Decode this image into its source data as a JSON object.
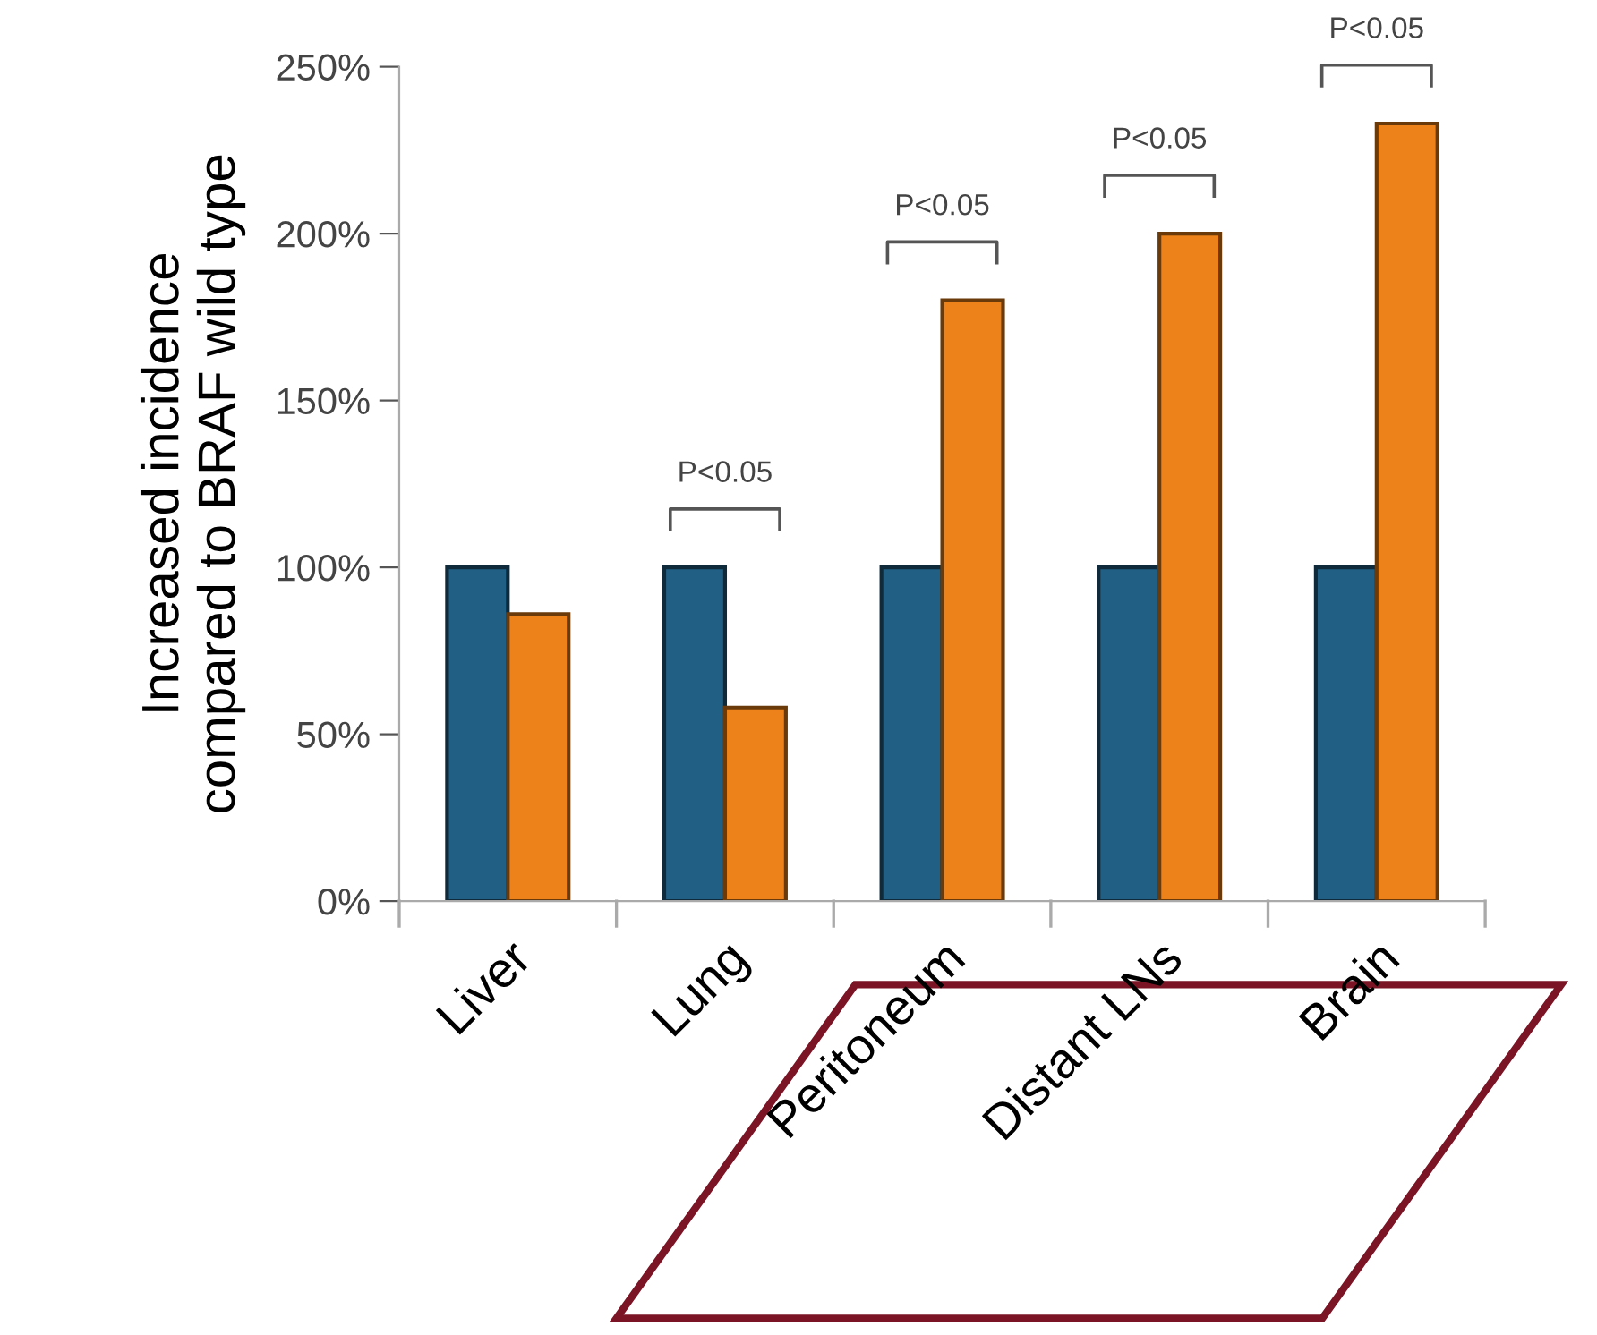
{
  "chart_data": {
    "type": "bar",
    "ylabel": "Increased incidence\ncompared to BRAF wild type",
    "categories": [
      "Liver",
      "Lung",
      "Peritoneum",
      "Distant LNs",
      "Brain"
    ],
    "series": [
      {
        "color": "#215f84",
        "values": [
          100,
          100,
          100,
          100,
          100
        ]
      },
      {
        "color": "#ec8219",
        "values": [
          86,
          58,
          180,
          200,
          233
        ]
      }
    ],
    "ylim": [
      0,
      250
    ],
    "yticks": [
      {
        "value": 0,
        "label": "0%"
      },
      {
        "value": 50,
        "label": "50%"
      },
      {
        "value": 100,
        "label": "100%"
      },
      {
        "value": 150,
        "label": "150%"
      },
      {
        "value": 200,
        "label": "200%"
      },
      {
        "value": 250,
        "label": "250%"
      }
    ],
    "annotations": [
      "P<0.05",
      "P<0.05",
      "P<0.05",
      "P<0.05"
    ],
    "grid": false,
    "legend": false
  }
}
